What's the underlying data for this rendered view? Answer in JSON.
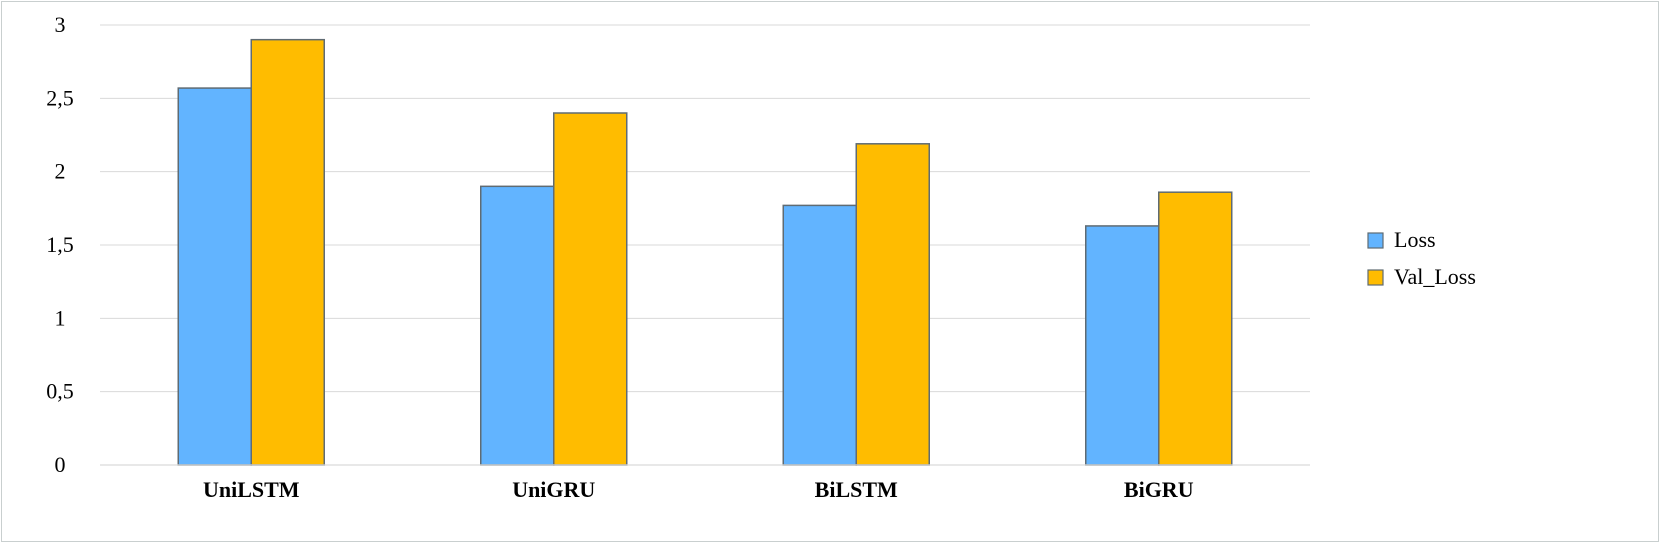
{
  "chart_data": {
    "type": "bar",
    "title": "",
    "xlabel": "",
    "ylabel": "",
    "categories": [
      "UniLSTM",
      "UniGRU",
      "BiLSTM",
      "BiGRU"
    ],
    "series": [
      {
        "name": "Loss",
        "color": "#62b4ff",
        "values": [
          2.57,
          1.9,
          1.77,
          1.63
        ]
      },
      {
        "name": "Val_Loss",
        "color": "#ffbc00",
        "values": [
          2.9,
          2.4,
          2.19,
          1.86
        ]
      }
    ],
    "ylim": [
      0,
      3
    ],
    "yticks": [
      0,
      0.5,
      1,
      1.5,
      2,
      2.5,
      3
    ],
    "ytick_labels": [
      "0",
      "0,5",
      "1",
      "1,5",
      "2",
      "2,5",
      "3"
    ],
    "grid": true,
    "legend_position": "right"
  }
}
